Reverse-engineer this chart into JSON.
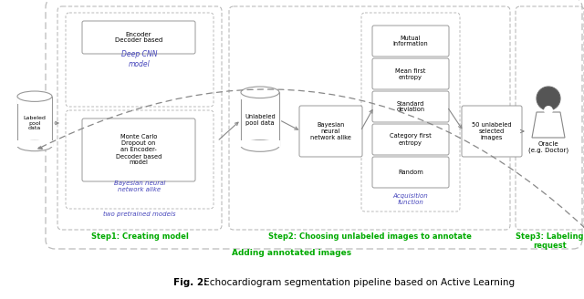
{
  "bg_color": "#ffffff",
  "fig_caption": "Fig. 2: Echocardiogram segmentation pipeline based on Active Learning",
  "step1_label": "Step1: Creating model",
  "step2_label": "Step2: Choosing unlabeled images to annotate",
  "step3_label": "Step3: Labeling\nrequest",
  "adding_label": "Adding annotated images",
  "label_color": "#00aa00",
  "step_label_color": "#00aa00",
  "arrow_color": "#888888",
  "blue_text_color": "#4444bb",
  "labeled_pool_text": "Labeled\npool\ndata",
  "unlabeled_pool_text": "Unlabeled\npool data",
  "bayesian_nn_text": "Bayesian\nneural\nnetwork alike",
  "selected_text": "50 unlabeled\nselected\nimages",
  "oracle_text": "Oracle\n(e.g. Doctor)",
  "encoder_decoder_text": "Encoder\nDecoder based",
  "deep_cnn_text": "Deep CNN\nmodel",
  "monte_carlo_text": "Monte Carlo\nDropout on\nan Encoder-\nDecoder based\nmodel",
  "bayesian_label_text": "Bayesian neural\nnetwork alike",
  "two_pretrained_text": "two pretrained models",
  "acq_funcs": [
    "Mutual\nInformation",
    "Mean first\nentropy",
    "Standard\ndeviation",
    "Category first\nentropy",
    "Random"
  ],
  "acq_func_title": "Acquisition\nfunction",
  "dash_color": "#aaaaaa",
  "box_edge_color": "#999999",
  "caption_bold": "Fig. 2:",
  "caption_normal": " Echocardiogram segmentation pipeline based on Active Learning"
}
